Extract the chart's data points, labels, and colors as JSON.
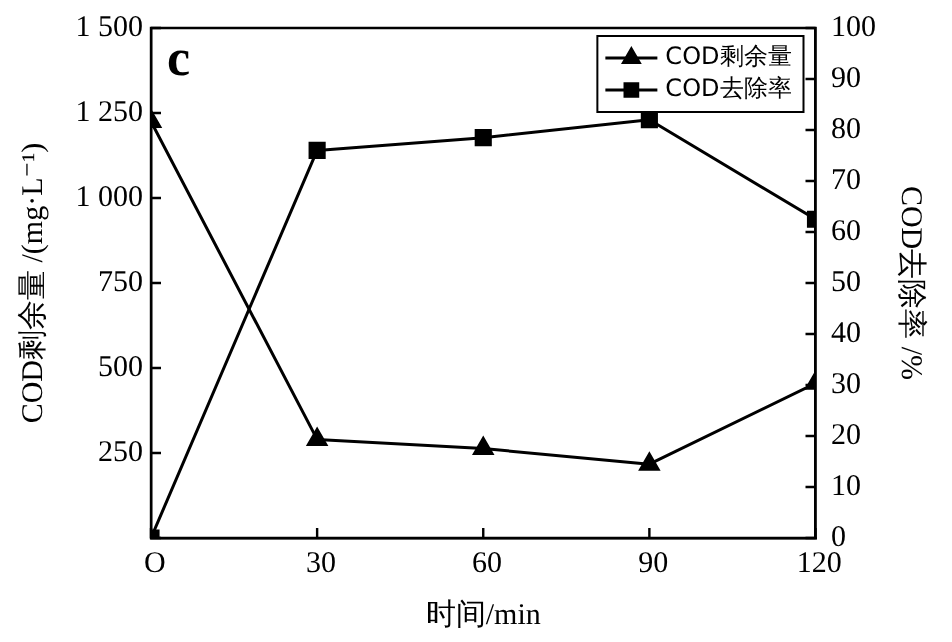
{
  "chart_data": {
    "type": "line",
    "xlabel": "时间/min",
    "ylabel": "COD剩余量 /(mg·L⁻¹)",
    "y2label": "COD去除率 /%",
    "annotations": [
      "c"
    ],
    "x": [
      0,
      30,
      60,
      90,
      120
    ],
    "series": [
      {
        "name": "COD剩余量",
        "color": "#000000",
        "marker": "triangle",
        "values": [
          1225,
          290,
          263,
          217,
          455
        ]
      },
      {
        "name": "COD去除率",
        "color": "#000000",
        "marker": "square",
        "axis": "y2",
        "values": [
          0,
          76,
          78.5,
          82,
          62.5
        ]
      }
    ],
    "xlim": [
      0,
      120
    ],
    "xticks": [
      {
        "value": 0,
        "label": "O"
      },
      30,
      60,
      90,
      120
    ],
    "ylim": [
      0,
      1500
    ],
    "yticks": [
      {
        "value": 0,
        "label": null
      },
      {
        "value": 250,
        "label": "250"
      },
      {
        "value": 500,
        "label": "500"
      },
      {
        "value": 750,
        "label": "750"
      },
      {
        "value": 1000,
        "label": "1 000"
      },
      {
        "value": 1250,
        "label": "1 250"
      },
      {
        "value": 1500,
        "label": "1 500"
      }
    ],
    "y2lim": [
      0,
      100
    ],
    "y2ticks": [
      0,
      10,
      20,
      30,
      40,
      50,
      60,
      70,
      80,
      90,
      100
    ],
    "legend": "top right",
    "grid": false,
    "line_style": "solid"
  }
}
